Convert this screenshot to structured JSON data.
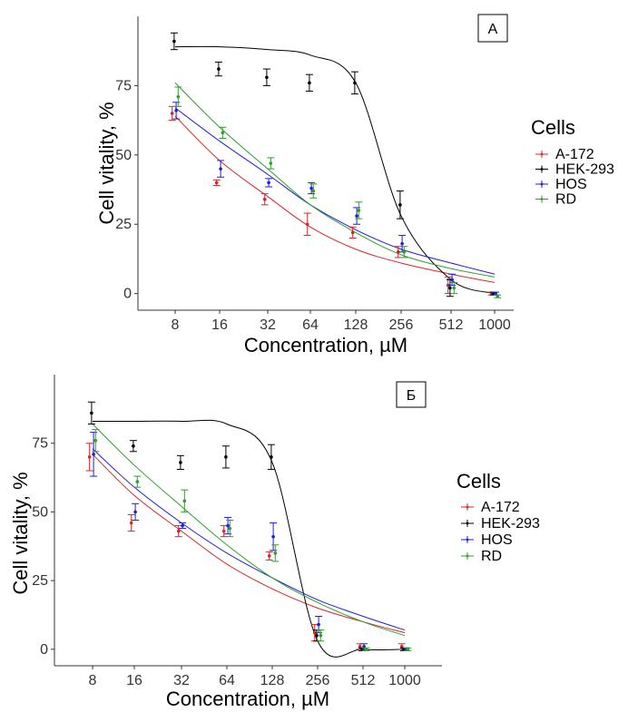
{
  "chart_data": [
    {
      "type": "line",
      "panel_label": "А",
      "xlabel": "Concentration, µM",
      "ylabel": "Cell vitality, %",
      "x_scale": "log2",
      "categories": [
        "8",
        "16",
        "32",
        "64",
        "128",
        "256",
        "512",
        "1000"
      ],
      "y_ticks": [
        "0",
        "25",
        "50",
        "75"
      ],
      "ylim": [
        -6,
        100
      ],
      "legend_title": "Cells",
      "legend_position": "right",
      "grid": false,
      "series": [
        {
          "name": "A-172",
          "color": "#d62728",
          "x": [
            8,
            16,
            32,
            64,
            128,
            256,
            512,
            1000
          ],
          "values": [
            65,
            40,
            34,
            25,
            22,
            15,
            3,
            0
          ],
          "err": [
            2.5,
            1,
            2,
            4,
            2,
            2,
            3,
            0.5
          ],
          "fit": [
            64,
            48,
            35,
            24,
            16,
            11,
            7,
            4
          ]
        },
        {
          "name": "HEK-293",
          "color": "#000000",
          "x": [
            8,
            16,
            32,
            64,
            128,
            256,
            512,
            1000
          ],
          "values": [
            91,
            81,
            78,
            76,
            76,
            32,
            2,
            0
          ],
          "err": [
            3,
            2.5,
            3,
            3,
            4,
            5,
            3,
            0.5
          ],
          "fit": [
            89,
            89,
            88,
            86,
            76,
            28,
            5,
            0
          ]
        },
        {
          "name": "HOS",
          "color": "#1f1fcc",
          "x": [
            8,
            16,
            32,
            64,
            128,
            256,
            512,
            1000
          ],
          "values": [
            66,
            45,
            40,
            38,
            28,
            18,
            5,
            0
          ],
          "err": [
            3,
            3,
            1.5,
            2,
            3,
            3,
            2,
            0.5
          ],
          "fit": [
            67,
            55,
            43,
            32,
            23,
            16,
            11,
            7
          ]
        },
        {
          "name": "RD",
          "color": "#2ca02c",
          "x": [
            8,
            16,
            32,
            64,
            128,
            256,
            512,
            1000
          ],
          "values": [
            71,
            58,
            47,
            37,
            30,
            15,
            2,
            -1
          ],
          "err": [
            3.5,
            2,
            2,
            2.5,
            3,
            2,
            2,
            0.5
          ],
          "fit": [
            76,
            60,
            45,
            32,
            22,
            14,
            9,
            6
          ]
        }
      ]
    },
    {
      "type": "line",
      "panel_label": "Б",
      "xlabel": "Concentration, µM",
      "ylabel": "Cell vitality, %",
      "x_scale": "log2",
      "categories": [
        "8",
        "16",
        "32",
        "64",
        "128",
        "256",
        "512",
        "1000"
      ],
      "y_ticks": [
        "0",
        "25",
        "50",
        "75"
      ],
      "ylim": [
        -6,
        100
      ],
      "legend_title": "Cells",
      "legend_position": "right",
      "grid": false,
      "series": [
        {
          "name": "A-172",
          "color": "#d62728",
          "x": [
            8,
            16,
            32,
            64,
            128,
            256,
            512,
            1000
          ],
          "values": [
            70,
            46,
            43,
            43,
            34,
            6,
            1,
            1
          ],
          "err": [
            5,
            3,
            2,
            2,
            1.5,
            3,
            1,
            1
          ],
          "fit": [
            71,
            56,
            43,
            31,
            22,
            15,
            10,
            6
          ]
        },
        {
          "name": "HEK-293",
          "color": "#000000",
          "x": [
            8,
            16,
            32,
            64,
            128,
            256,
            512,
            1000
          ],
          "values": [
            86,
            74,
            68,
            70,
            70,
            5,
            0,
            0
          ],
          "err": [
            4,
            2,
            2.5,
            4,
            4.5,
            2,
            0.5,
            0.5
          ],
          "fit": [
            83,
            83,
            83,
            82,
            68,
            3,
            0,
            0
          ]
        },
        {
          "name": "HOS",
          "color": "#1f1fcc",
          "x": [
            8,
            16,
            32,
            64,
            128,
            256,
            512,
            1000
          ],
          "values": [
            71,
            50,
            45,
            45,
            41,
            9,
            1,
            0
          ],
          "err": [
            8,
            3,
            1,
            3,
            5,
            3,
            1,
            0.5
          ],
          "fit": [
            73,
            59,
            46,
            35,
            26,
            18,
            12,
            7
          ]
        },
        {
          "name": "RD",
          "color": "#2ca02c",
          "x": [
            8,
            16,
            32,
            64,
            128,
            256,
            512,
            1000
          ],
          "values": [
            76,
            61,
            54,
            44,
            35,
            5,
            0,
            0
          ],
          "err": [
            4,
            2,
            4,
            3,
            3,
            2,
            0.5,
            0.5
          ],
          "fit": [
            82,
            67,
            52,
            38,
            26,
            17,
            10,
            5
          ]
        }
      ]
    }
  ]
}
